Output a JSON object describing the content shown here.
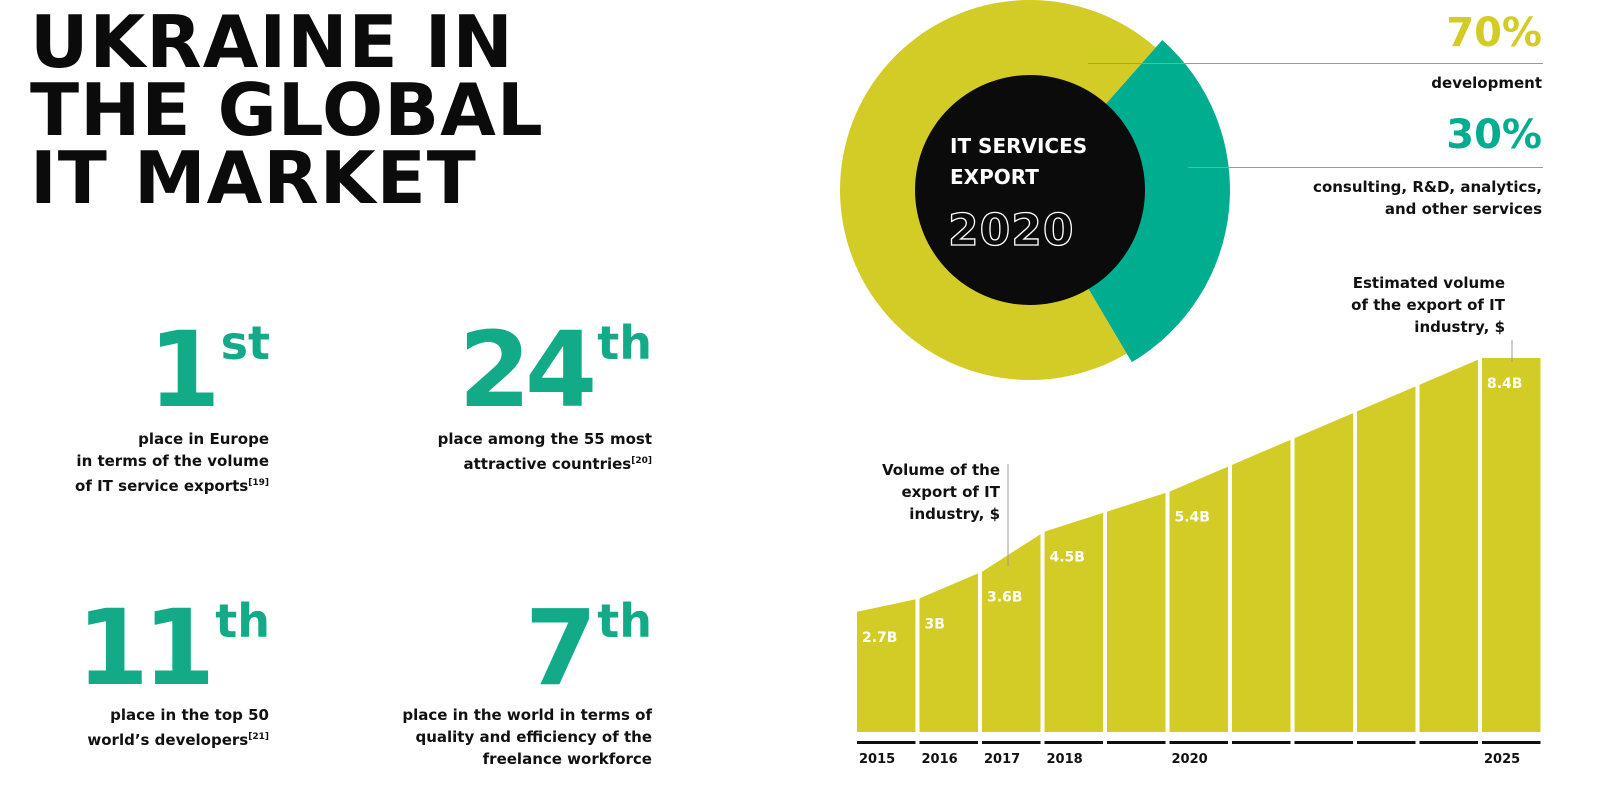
{
  "title": {
    "line1": "UKRAINE IN",
    "line2": "THE GLOBAL",
    "line3": "IT MARKET"
  },
  "ranks": [
    {
      "number": "1",
      "suffix": "st",
      "line1": "place in Europe",
      "line2": "in terms of the volume",
      "line3": "of IT service exports",
      "ref": "[19]"
    },
    {
      "number": "24",
      "suffix": "th",
      "line1": "place among the 55 most",
      "line2": "attractive countries",
      "ref": "[20]"
    },
    {
      "number": "11",
      "suffix": "th",
      "line1": "place in the top 50",
      "line2": "world’s developers",
      "ref": "[21]"
    },
    {
      "number": "7",
      "suffix": "th",
      "line1": "place in the world in terms of",
      "line2": "quality and efficiency of the",
      "line3": "freelance workforce"
    }
  ],
  "donut": {
    "center_line1": "IT SERVICES",
    "center_line2": "EXPORT",
    "center_year": "2020",
    "segments": [
      {
        "percent": "70%",
        "value": 70,
        "label": "development",
        "color": "#d4cc26"
      },
      {
        "percent": "30%",
        "value": 30,
        "label_line1": "consulting, R&D, analytics,",
        "label_line2": "and other services",
        "color": "#00ad8e"
      }
    ]
  },
  "notes": {
    "actual_line1": "Volume of the",
    "actual_line2": "export of IT",
    "actual_line3": "industry, $",
    "estimate_line1": "Estimated volume",
    "estimate_line2": "of the export of IT",
    "estimate_line3": "industry, $"
  },
  "chart_data": {
    "type": "area",
    "title": "",
    "xlabel": "",
    "ylabel": "",
    "ylim": [
      0,
      8.4
    ],
    "columns": [
      "2015",
      "2016",
      "2017",
      "2018",
      "",
      "2020",
      "",
      "",
      "",
      "",
      "2025"
    ],
    "labeled_points": [
      {
        "year": "2015",
        "value": 2.7,
        "label": "2.7B"
      },
      {
        "year": "2016",
        "value": 3.0,
        "label": "3B"
      },
      {
        "year": "2017",
        "value": 3.6,
        "label": "3.6B"
      },
      {
        "year": "2018",
        "value": 4.5,
        "label": "4.5B"
      },
      {
        "year": "2020",
        "value": 5.4,
        "label": "5.4B"
      },
      {
        "year": "2025",
        "value": 8.4,
        "label": "8.4B"
      }
    ],
    "colors": {
      "area": "#d4cc26"
    }
  }
}
